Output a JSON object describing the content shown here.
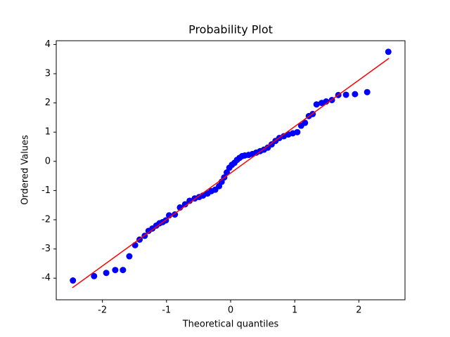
{
  "chart_data": {
    "type": "scatter",
    "title": "Probability Plot",
    "x_label": "Theoretical quantiles",
    "y_label": "Ordered Values",
    "x": [
      -2.46,
      -2.13,
      -1.94,
      -1.8,
      -1.68,
      -1.58,
      -1.49,
      -1.42,
      -1.34,
      -1.28,
      -1.22,
      -1.16,
      -1.11,
      -1.06,
      -1.01,
      -0.96,
      -0.87,
      -0.79,
      -0.71,
      -0.64,
      -0.56,
      -0.49,
      -0.43,
      -0.36,
      -0.3,
      -0.24,
      -0.18,
      -0.14,
      -0.1,
      -0.06,
      -0.02,
      0.02,
      0.06,
      0.1,
      0.14,
      0.18,
      0.22,
      0.28,
      0.34,
      0.4,
      0.46,
      0.52,
      0.58,
      0.64,
      0.7,
      0.76,
      0.83,
      0.9,
      0.97,
      1.04,
      1.1,
      1.16,
      1.22,
      1.28,
      1.34,
      1.42,
      1.49,
      1.58,
      1.68,
      1.8,
      1.94,
      2.13,
      2.46
    ],
    "values": [
      -4.08,
      -3.93,
      -3.82,
      -3.72,
      -3.72,
      -3.25,
      -2.87,
      -2.68,
      -2.55,
      -2.38,
      -2.3,
      -2.2,
      -2.12,
      -2.08,
      -2.02,
      -1.85,
      -1.82,
      -1.58,
      -1.47,
      -1.35,
      -1.27,
      -1.22,
      -1.17,
      -1.1,
      -1.02,
      -0.97,
      -0.85,
      -0.7,
      -0.55,
      -0.38,
      -0.22,
      -0.12,
      -0.05,
      0.05,
      0.12,
      0.18,
      0.2,
      0.22,
      0.25,
      0.3,
      0.35,
      0.4,
      0.47,
      0.58,
      0.7,
      0.8,
      0.86,
      0.92,
      0.96,
      1.0,
      1.22,
      1.32,
      1.55,
      1.62,
      1.95,
      2.0,
      2.05,
      2.1,
      2.27,
      2.28,
      2.3,
      2.37,
      3.75
    ],
    "color": "#0000ff",
    "fit_line": {
      "x": [
        -2.47,
        2.47
      ],
      "values": [
        -4.33,
        3.53
      ],
      "color": "#ff0000"
    },
    "xlim": [
      -2.72,
      2.72
    ],
    "ylim": [
      -4.74,
      4.13
    ],
    "xticks": [
      -2,
      -1,
      0,
      1,
      2
    ],
    "yticks": [
      -4,
      -3,
      -2,
      -1,
      0,
      1,
      2,
      3,
      4
    ]
  }
}
